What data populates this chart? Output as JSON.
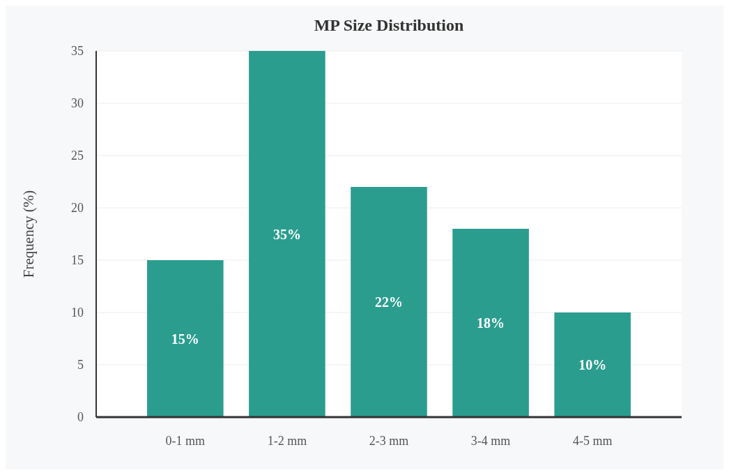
{
  "chart_data": {
    "type": "bar",
    "title": "MP Size Distribution",
    "ylabel": "Frequency (%)",
    "categories": [
      "0-1 mm",
      "1-2 mm",
      "2-3 mm",
      "3-4 mm",
      "4-5 mm"
    ],
    "values": [
      15,
      35,
      22,
      18,
      10
    ],
    "value_labels": [
      "15%",
      "35%",
      "22%",
      "18%",
      "10%"
    ],
    "color": "#2a9d8f",
    "ylim": [
      0,
      35
    ],
    "yticks": [
      0,
      5,
      10,
      15,
      20,
      25,
      30,
      35
    ],
    "grid": "y"
  }
}
